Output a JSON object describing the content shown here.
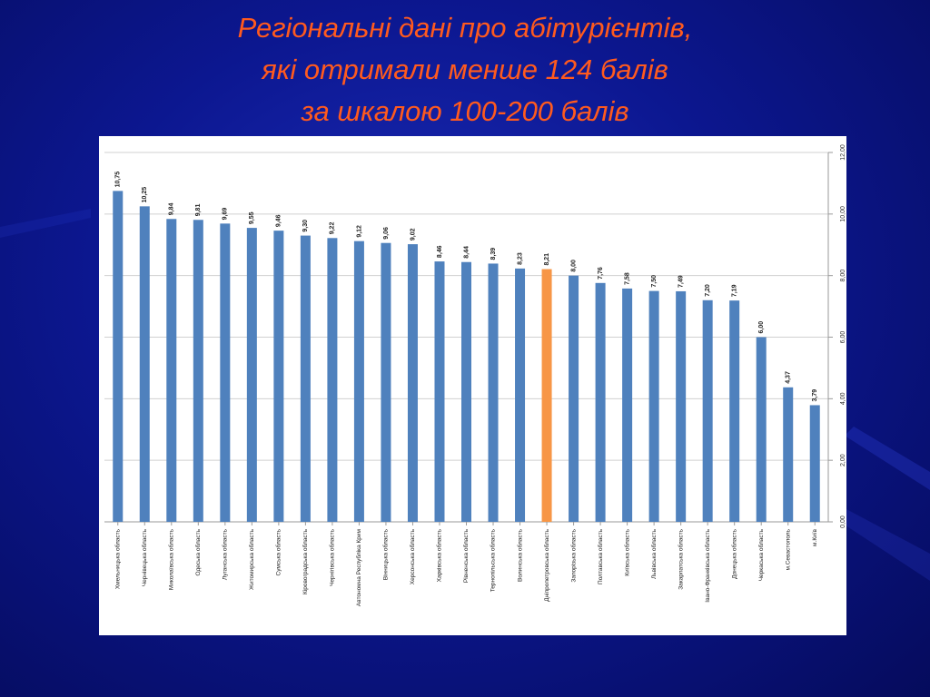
{
  "slide": {
    "title_lines": [
      "Регіональні дані про абітурієнтів,",
      "які отримали менше 124 балів",
      "за шкалою 100-200 балів"
    ]
  },
  "colors": {
    "background": "#0c1790",
    "title": "#ff5a1e",
    "bar": "#4f81bd",
    "highlight_bar": "#f79646"
  },
  "chart_data": {
    "type": "bar",
    "categories": [
      "Хмельницька область",
      "Чернівецька область",
      "Миколаївська область",
      "Одеська область",
      "Луганська область",
      "Житомирська область",
      "Сумська область",
      "Кіровоградська область",
      "Чернігівська область",
      "Автономна Республіка Крим",
      "Вінницька область",
      "Херсонська область",
      "Харківська область",
      "Рівненська область",
      "Тернопільська область",
      "Волинська область",
      "Дніпропетровська область",
      "Запорізька область",
      "Полтавська область",
      "Київська область",
      "Львівська область",
      "Закарпатська область",
      "Івано-Франківська область",
      "Донецька область",
      "Черкаська область",
      "м.Севастополь",
      "м.Київ"
    ],
    "values": [
      10.75,
      10.25,
      9.84,
      9.81,
      9.69,
      9.55,
      9.46,
      9.3,
      9.22,
      9.12,
      9.06,
      9.02,
      8.46,
      8.44,
      8.39,
      8.23,
      8.21,
      8.0,
      7.76,
      7.58,
      7.5,
      7.49,
      7.2,
      7.19,
      6.0,
      4.37,
      3.79
    ],
    "value_labels": [
      "10,75",
      "10,25",
      "9,84",
      "9,81",
      "9,69",
      "9,55",
      "9,46",
      "9,30",
      "9,22",
      "9,12",
      "9,06",
      "9,02",
      "8,46",
      "8,44",
      "8,39",
      "8,23",
      "8,21",
      "8,00",
      "7,76",
      "7,58",
      "7,50",
      "7,49",
      "7,20",
      "7,19",
      "6,00",
      "4,37",
      "3,79"
    ],
    "highlight_index": 16,
    "ylim": [
      0,
      12
    ],
    "y_ticks": [
      0,
      2,
      4,
      6,
      8,
      10,
      12
    ],
    "y_tick_labels": [
      "0,00",
      "2,00",
      "4,00",
      "6,00",
      "8,00",
      "10,00",
      "12,00"
    ],
    "y_axis_side": "right",
    "grid": true,
    "title": "",
    "xlabel": "",
    "ylabel": ""
  }
}
